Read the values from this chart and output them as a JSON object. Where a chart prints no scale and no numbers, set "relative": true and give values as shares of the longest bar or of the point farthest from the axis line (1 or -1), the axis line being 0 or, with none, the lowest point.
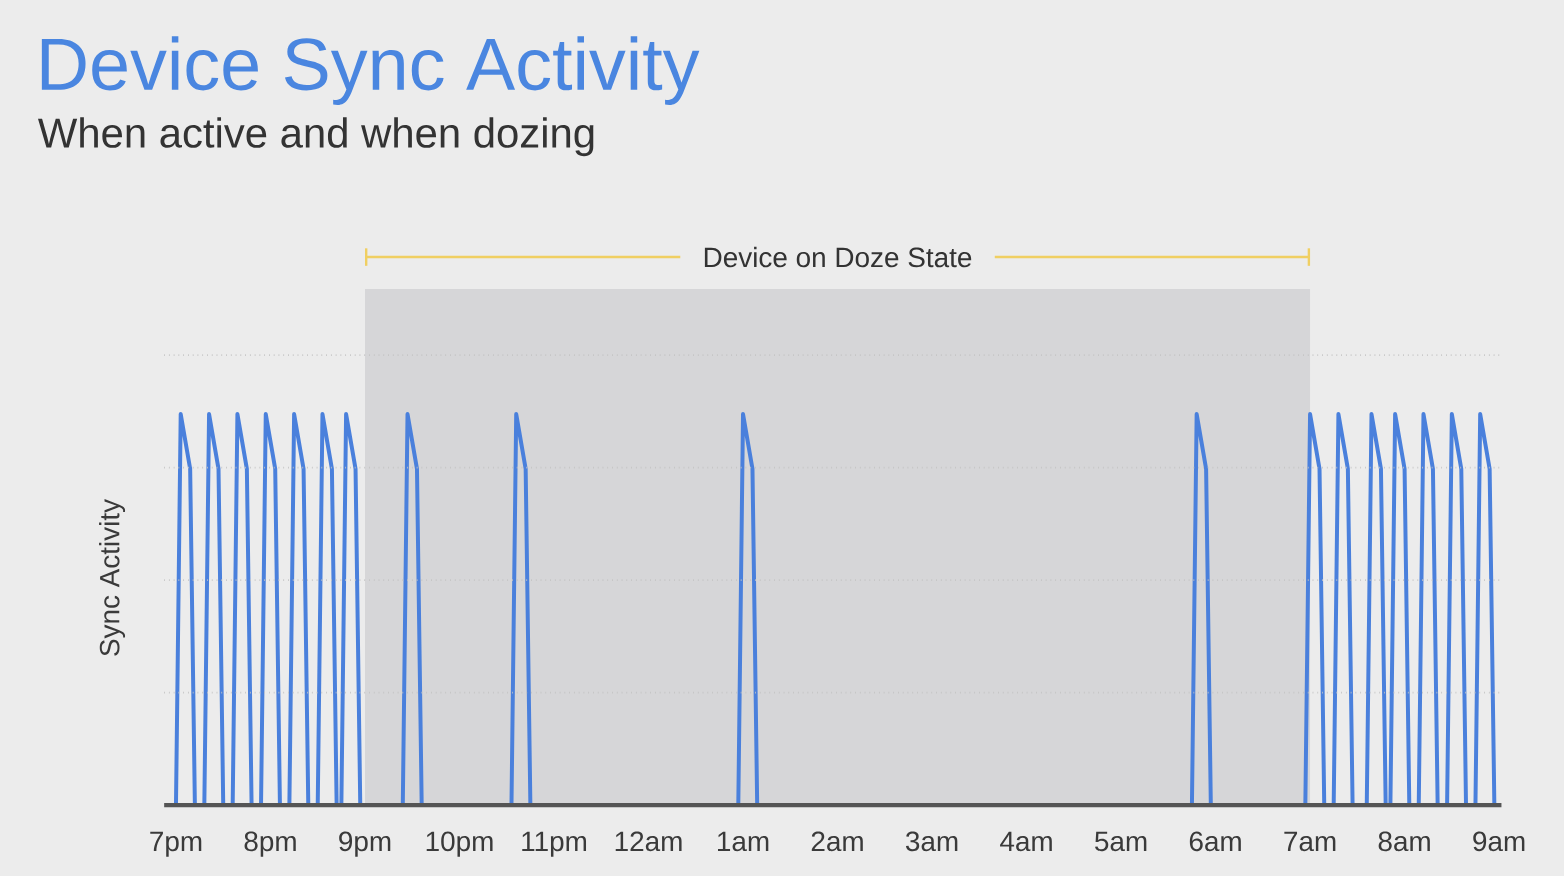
{
  "chart_data": {
    "type": "line",
    "title": "Device Sync Activity",
    "subtitle": "When active and when dozing",
    "ylabel": "Sync Activity",
    "relative": true,
    "categories": [
      null,
      null,
      "7pm",
      null,
      null,
      null,
      null,
      null,
      null,
      null,
      null,
      null,
      null,
      null,
      null,
      null,
      null,
      null,
      null,
      null,
      null,
      null,
      "8pm",
      null,
      null,
      null,
      null,
      null,
      null,
      null,
      null,
      null,
      null,
      null,
      null,
      null,
      null,
      null,
      null,
      null,
      null,
      null,
      "9pm",
      null,
      null,
      null,
      null,
      null,
      null,
      null,
      null,
      null,
      null,
      null,
      null,
      null,
      null,
      null,
      null,
      null,
      null,
      null,
      "10pm",
      null,
      null,
      null,
      null,
      null,
      null,
      null,
      null,
      null,
      null,
      null,
      null,
      null,
      null,
      null,
      null,
      null,
      null,
      null,
      "11pm",
      null,
      null,
      null,
      null,
      null,
      null,
      null,
      null,
      null,
      null,
      null,
      null,
      null,
      null,
      null,
      null,
      null,
      null,
      null,
      "12am",
      null,
      null,
      null,
      null,
      null,
      null,
      null,
      null,
      null,
      null,
      null,
      null,
      null,
      null,
      null,
      null,
      null,
      null,
      null,
      "1am",
      null,
      null,
      null,
      null,
      null,
      null,
      null,
      null,
      null,
      null,
      null,
      null,
      null,
      null,
      null,
      null,
      null,
      null,
      null,
      "2am",
      null,
      null,
      null,
      null,
      null,
      null,
      null,
      null,
      null,
      null,
      null,
      null,
      null,
      null,
      null,
      null,
      null,
      null,
      null,
      "3am",
      null,
      null,
      null,
      null,
      null,
      null,
      null,
      null,
      null,
      null,
      null,
      null,
      null,
      null,
      null,
      null,
      null,
      null,
      null,
      "4am",
      null,
      null,
      null,
      null,
      null,
      null,
      null,
      null,
      null,
      null,
      null,
      null,
      null,
      null,
      null,
      null,
      null,
      null,
      null,
      "5am",
      null,
      null,
      null,
      null,
      null,
      null,
      null,
      null,
      null,
      null,
      null,
      null,
      null,
      null,
      null,
      null,
      null,
      null,
      null,
      "6am",
      null,
      null,
      null,
      null,
      null,
      null,
      null,
      null,
      null,
      null,
      null,
      null,
      null,
      null,
      null,
      null,
      null,
      null,
      null,
      "7am",
      null,
      null,
      null,
      null,
      null,
      null,
      null,
      null,
      null,
      null,
      null,
      null,
      null,
      null,
      null,
      null,
      null,
      null,
      null,
      "8am",
      null,
      null,
      null,
      null,
      null,
      null,
      null,
      null,
      null,
      null,
      null,
      null,
      null,
      null,
      null,
      null,
      null,
      null,
      null,
      "9am"
    ],
    "values": [
      null,
      null,
      0,
      1,
      0.93,
      0.86,
      0,
      null,
      0,
      1,
      0.93,
      0.86,
      0,
      null,
      0,
      1,
      0.93,
      0.86,
      0,
      null,
      0,
      1,
      0.93,
      0.86,
      0,
      null,
      0,
      1,
      0.93,
      0.86,
      0,
      null,
      0,
      1,
      0.93,
      0.86,
      0,
      0,
      1,
      0.93,
      0.86,
      0,
      null,
      null,
      null,
      null,
      null,
      null,
      null,
      null,
      0,
      1,
      0.93,
      0.86,
      0,
      null,
      null,
      null,
      null,
      null,
      null,
      null,
      null,
      null,
      null,
      null,
      null,
      null,
      null,
      null,
      null,
      null,
      null,
      0,
      1,
      0.93,
      0.86,
      0,
      null,
      null,
      null,
      null,
      null,
      null,
      null,
      null,
      null,
      null,
      null,
      null,
      null,
      null,
      null,
      null,
      null,
      null,
      null,
      null,
      null,
      null,
      null,
      null,
      null,
      null,
      null,
      null,
      null,
      null,
      null,
      null,
      null,
      null,
      null,
      null,
      null,
      null,
      null,
      null,
      null,
      null,
      null,
      0,
      1,
      0.93,
      0.86,
      0,
      null,
      null,
      null,
      null,
      null,
      null,
      null,
      null,
      null,
      null,
      null,
      null,
      null,
      null,
      null,
      null,
      null,
      null,
      null,
      null,
      null,
      null,
      null,
      null,
      null,
      null,
      null,
      null,
      null,
      null,
      null,
      null,
      null,
      null,
      null,
      null,
      null,
      null,
      null,
      null,
      null,
      null,
      null,
      null,
      null,
      null,
      null,
      null,
      null,
      null,
      null,
      null,
      null,
      null,
      null,
      null,
      null,
      null,
      null,
      null,
      null,
      null,
      null,
      null,
      null,
      null,
      null,
      null,
      null,
      null,
      null,
      null,
      null,
      null,
      null,
      null,
      null,
      null,
      null,
      null,
      null,
      null,
      null,
      null,
      null,
      null,
      null,
      null,
      null,
      null,
      null,
      0,
      1,
      0.93,
      0.86,
      0,
      null,
      null,
      null,
      null,
      null,
      null,
      null,
      null,
      null,
      null,
      null,
      null,
      null,
      null,
      null,
      null,
      null,
      null,
      null,
      0,
      1,
      0.93,
      0.86,
      0,
      null,
      0,
      1,
      0.93,
      0.86,
      0,
      null,
      null,
      0,
      1,
      0.93,
      0.86,
      0,
      0,
      1,
      0.93,
      0.86,
      0,
      null,
      0,
      1,
      0.93,
      0.86,
      0,
      null,
      0,
      1,
      0.93,
      0.86,
      0,
      null,
      0,
      1,
      0.93,
      0.86,
      0,
      null
    ],
    "color": "#4a80dc",
    "grid": "y",
    "marker": "none",
    "bands": [
      {
        "axis": "x",
        "from": "9pm",
        "to": "7am",
        "label": "Device on Doze State",
        "color": "#d6d6d8"
      }
    ]
  }
}
